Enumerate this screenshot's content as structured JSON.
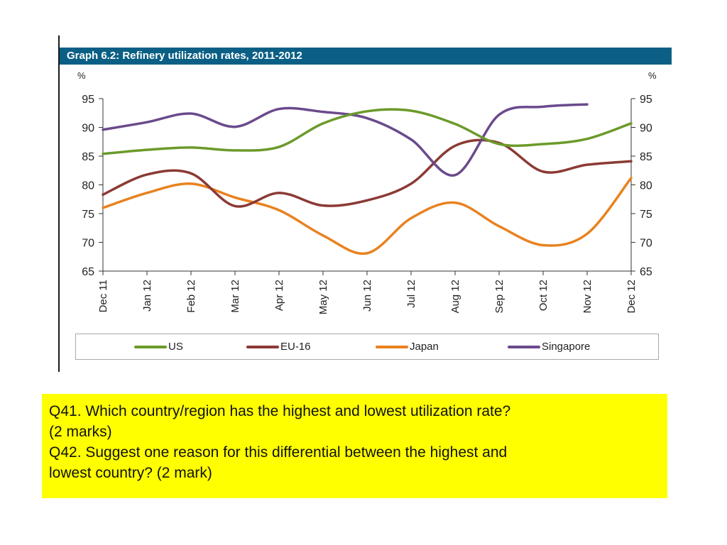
{
  "chart_data": {
    "type": "line",
    "title": "Graph 6.2: Refinery utilization rates, 2011-2012",
    "ylabel_left": "%",
    "ylabel_right": "%",
    "ylim": [
      65,
      95
    ],
    "y_ticks": [
      65,
      70,
      75,
      80,
      85,
      90,
      95
    ],
    "categories": [
      "Dec 11",
      "Jan 12",
      "Feb 12",
      "Mar 12",
      "Apr 12",
      "May 12",
      "Jun 12",
      "Jul 12",
      "Aug 12",
      "Sep 12",
      "Oct 12",
      "Nov 12",
      "Dec 12"
    ],
    "grid": false,
    "legend_position": "bottom",
    "series": [
      {
        "name": "US",
        "color": "#6b9a2a",
        "values": [
          85.4,
          86.1,
          86.5,
          86.0,
          86.6,
          90.7,
          92.8,
          92.9,
          90.6,
          87.1,
          87.1,
          88.0,
          90.7
        ]
      },
      {
        "name": "EU-16",
        "color": "#8b3a35",
        "values": [
          78.3,
          81.8,
          82.0,
          76.3,
          78.6,
          76.4,
          77.3,
          80.2,
          86.8,
          87.3,
          82.3,
          83.5,
          84.1
        ]
      },
      {
        "name": "Japan",
        "color": "#e8821f",
        "values": [
          76.0,
          78.6,
          80.2,
          77.8,
          75.6,
          71.2,
          68.1,
          74.2,
          76.9,
          72.8,
          69.5,
          71.5,
          81.2
        ]
      },
      {
        "name": "Singapore",
        "color": "#6a4a8c",
        "values": [
          89.6,
          90.9,
          92.4,
          90.1,
          93.2,
          92.7,
          91.6,
          87.9,
          81.7,
          92.2,
          93.6,
          94.0,
          null
        ]
      }
    ]
  },
  "questions": {
    "q41_line1": "Q41.  Which country/region has the highest and lowest utilization rate?",
    "q41_line2": "(2 marks)",
    "q42_line1": "Q42.  Suggest one reason for this differential between the highest and",
    "q42_line2": "lowest country?  (2 mark)"
  }
}
